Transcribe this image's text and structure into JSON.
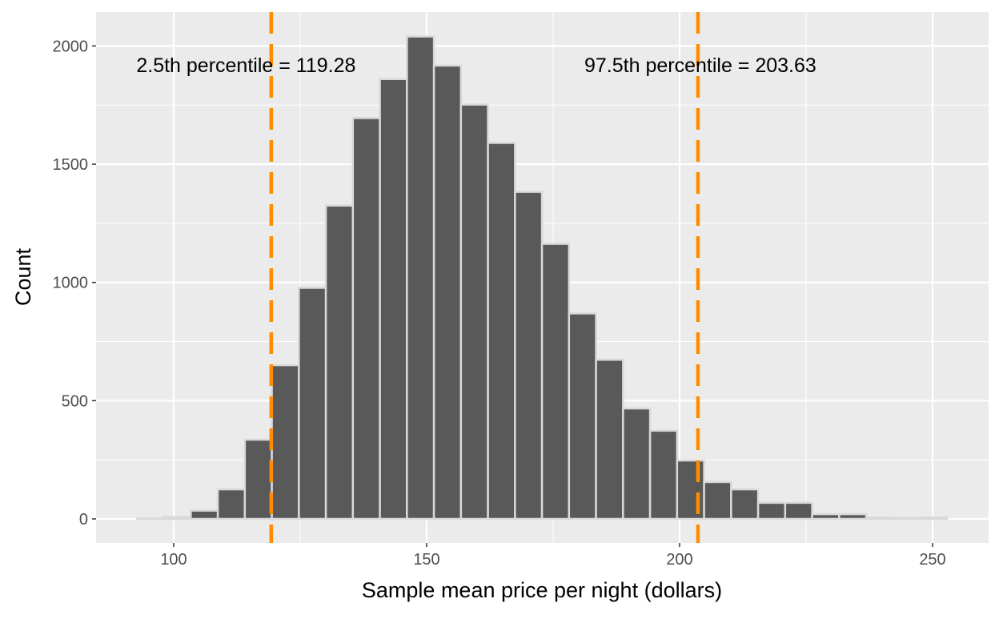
{
  "chart_data": {
    "type": "bar",
    "title": "",
    "xlabel": "Sample mean price per night (dollars)",
    "ylabel": "Count",
    "xlim": [
      85,
      259
    ],
    "ylim": [
      -110,
      2140
    ],
    "x_ticks": [
      100,
      150,
      200,
      250
    ],
    "x_tick_labels": [
      "100",
      "150",
      "200",
      "250"
    ],
    "y_ticks": [
      0,
      500,
      1000,
      1500,
      2000
    ],
    "y_tick_labels": [
      "0",
      "500",
      "1000",
      "1500",
      "2000"
    ],
    "grid": true,
    "bin_start": 92.7,
    "bin_width": 5.34,
    "counts": [
      2,
      8,
      35,
      125,
      335,
      650,
      977,
      1325,
      1695,
      1860,
      2040,
      1917,
      1752,
      1590,
      1383,
      1163,
      869,
      673,
      467,
      373,
      247,
      156,
      125,
      68,
      68,
      20,
      20,
      6,
      3,
      6
    ],
    "bar_fill": "#595959",
    "bar_outline": "#D9D9D9",
    "panel_bg": "#EBEBEB",
    "vlines": [
      {
        "x": 119.28,
        "color": "#FF8C00",
        "style": "dashed"
      },
      {
        "x": 203.63,
        "color": "#FF8C00",
        "style": "dashed"
      }
    ],
    "annotations": [
      {
        "text": "2.5th percentile = 119.28",
        "x": 114.3,
        "y": 1920
      },
      {
        "text": "97.5th percentile = 203.63",
        "x": 204.1,
        "y": 1920
      }
    ]
  }
}
